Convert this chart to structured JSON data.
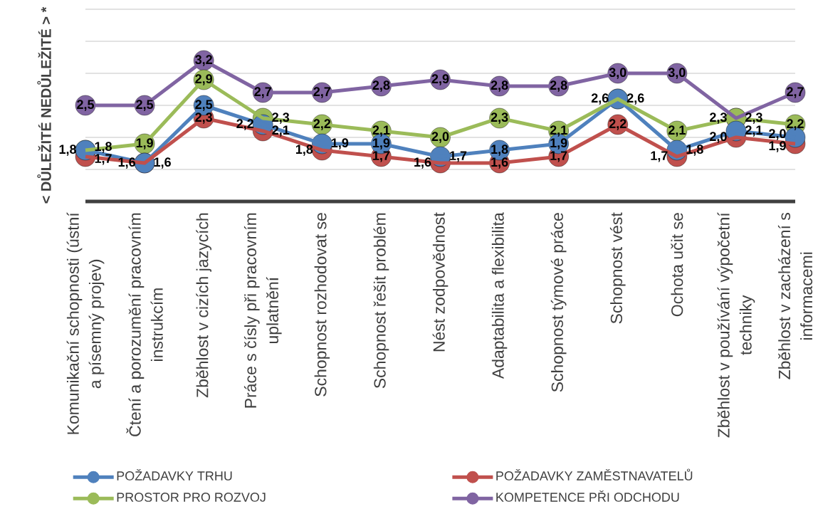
{
  "chart_data": {
    "type": "line",
    "ylabel": "< DŮLEŽITÉ NEDŮLEŽITÉ > *",
    "categories": [
      "Komunikační schopnosti (ústní a písemný projev)",
      "Čtení a porozumění pracovním instrukcím",
      "Zběhlost v cizích jazycích",
      "Práce s čísly při pracovním uplatnění",
      "Schopnost rozhodovat se",
      "Schopnost řešit problém",
      "Nést zodpovědnost",
      "Adaptabilita a flexibilita",
      "Schopnost týmové práce",
      "Schopnost vést",
      "Ochota učit se",
      "Zběhlost v používání výpočetní techniky",
      "Zběhlost v zacházení s informacemi"
    ],
    "series": [
      {
        "name": "POŽADAVKY TRHU",
        "color": "#4f81bd",
        "values": [
          1.8,
          1.6,
          2.5,
          2.2,
          1.9,
          1.9,
          1.7,
          1.8,
          1.9,
          2.6,
          1.8,
          2.1,
          2.0
        ],
        "value_labels": [
          "1,8",
          "1,6",
          "2,5",
          "2,2",
          "1,9",
          "1,9",
          "1,7",
          "1,8",
          "1,9",
          "2,6",
          "1,8",
          "2,1",
          "2,0"
        ]
      },
      {
        "name": "POŽADAVKY ZAMĚSTNAVATELŮ",
        "color": "#c0504d",
        "values": [
          1.7,
          1.6,
          2.3,
          2.1,
          1.8,
          1.7,
          1.6,
          1.6,
          1.7,
          2.2,
          1.7,
          2.0,
          1.9
        ],
        "value_labels": [
          "1,7",
          "1,6",
          "2,3",
          "2,1",
          "1,8",
          "1,7",
          "1,6",
          "1,6",
          "1,7",
          "2,2",
          "1,7",
          "2,0",
          "1,9"
        ]
      },
      {
        "name": "PROSTOR PRO ROZVOJ",
        "color": "#9bbb59",
        "values": [
          1.8,
          1.9,
          2.9,
          2.3,
          2.2,
          2.1,
          2.0,
          2.3,
          2.1,
          2.6,
          2.1,
          2.3,
          2.2
        ],
        "value_labels": [
          "1,8",
          "1,9",
          "2,9",
          "2,3",
          "2,2",
          "2,1",
          "2,0",
          "2,3",
          "2,1",
          "2,6",
          "2,1",
          "2,3",
          "2,2"
        ]
      },
      {
        "name": "KOMPETENCE PŘI ODCHODU",
        "color": "#8064a2",
        "values": [
          2.5,
          2.5,
          3.2,
          2.7,
          2.7,
          2.8,
          2.9,
          2.8,
          2.8,
          3.0,
          3.0,
          2.3,
          2.7
        ],
        "value_labels": [
          "2,5",
          "2,5",
          "3,2",
          "2,7",
          "2,7",
          "2,8",
          "2,9",
          "2,8",
          "2,8",
          "3,0",
          "3,0",
          "2,3",
          "2,7"
        ]
      }
    ],
    "tick_labels": "x",
    "grid": "y",
    "legend": "bottom",
    "marker": "circle"
  }
}
